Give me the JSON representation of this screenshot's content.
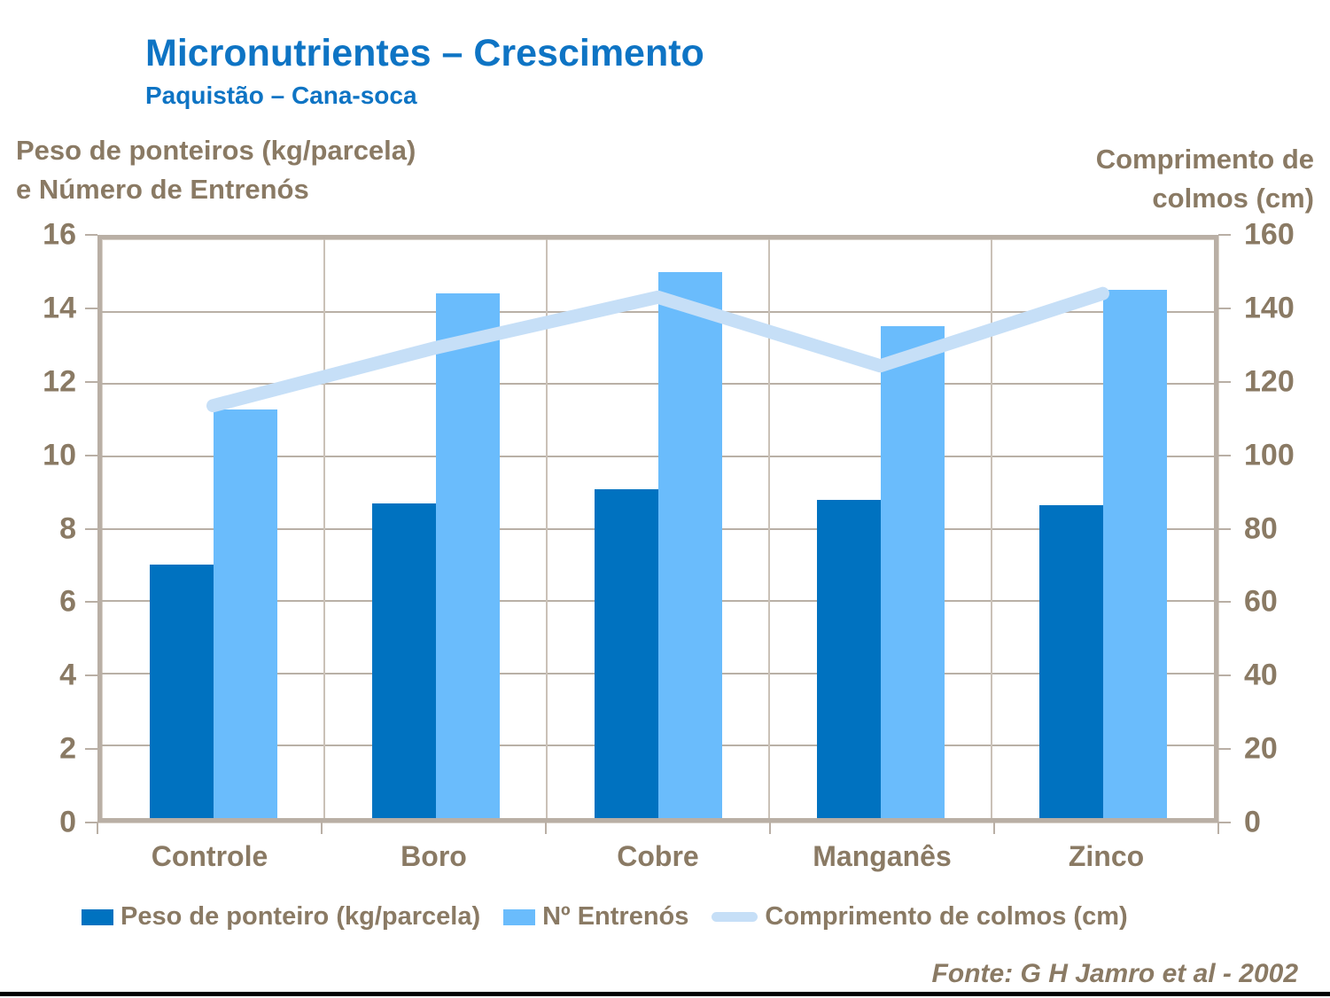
{
  "header": {
    "title": "Micronutrientes – Crescimento",
    "subtitle": "Paquistão – Cana-soca"
  },
  "axes": {
    "left_title_line1": "Peso de ponteiros (kg/parcela)",
    "left_title_line2": "e Número de Entrenós",
    "right_title_line1": "Comprimento de",
    "right_title_line2": "colmos (cm)",
    "left_ticks": [
      "16",
      "14",
      "12",
      "10",
      "8",
      "6",
      "4",
      "2",
      "0"
    ],
    "right_ticks": [
      "160",
      "140",
      "120",
      "100",
      "80",
      "60",
      "40",
      "20",
      "0"
    ]
  },
  "chart_data": {
    "type": "bar",
    "categories": [
      "Controle",
      "Boro",
      "Cobre",
      "Manganês",
      "Zinco"
    ],
    "series": [
      {
        "name": "Peso de ponteiro (kg/parcela)",
        "kind": "bar",
        "axis": "left",
        "color": "#0072c0",
        "values": [
          7.0,
          8.7,
          9.1,
          8.8,
          8.65
        ]
      },
      {
        "name": "Nº Entrenós",
        "kind": "bar",
        "axis": "left",
        "color": "#6abcfc",
        "values": [
          11.3,
          14.5,
          15.1,
          13.6,
          14.6
        ]
      },
      {
        "name": "Comprimento de colmos (cm)",
        "kind": "line",
        "axis": "right",
        "color": "#c6dff7",
        "values": [
          114,
          130,
          144,
          125,
          145
        ]
      }
    ],
    "left_axis_range": [
      0,
      16
    ],
    "right_axis_range": [
      0,
      160
    ],
    "grid": true,
    "legend_position": "bottom"
  },
  "legend": {
    "items": [
      {
        "label": "Peso de ponteiro (kg/parcela)",
        "swatch": "bar",
        "color": "#0072c0"
      },
      {
        "label": "Nº Entrenós",
        "swatch": "bar",
        "color": "#6abcfc"
      },
      {
        "label": "Comprimento de colmos (cm)",
        "swatch": "line",
        "color": "#c6dff7"
      }
    ]
  },
  "footer": {
    "source": "Fonte: G H Jamro et al - 2002"
  },
  "colors": {
    "title_blue": "#0e74c4",
    "axis_brown": "#8a7a64",
    "gridline": "#b9b0a6",
    "frame": "#b9afa5",
    "background": "#ffffff",
    "bottom_rule": "#000000"
  }
}
